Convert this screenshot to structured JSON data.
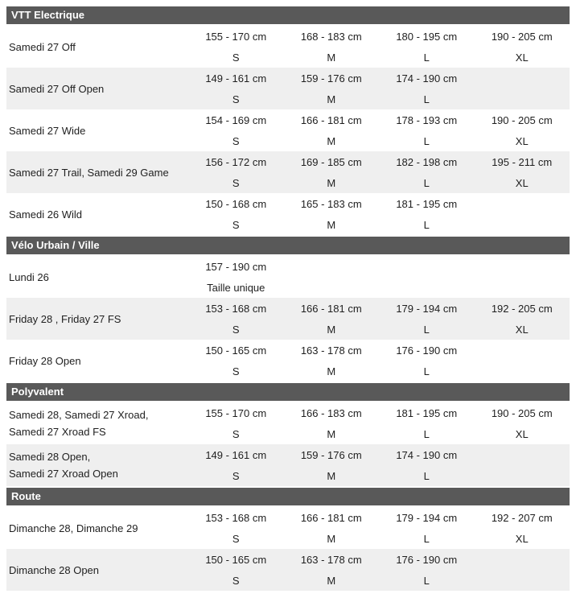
{
  "colors": {
    "header_bg": "#595959",
    "header_text": "#ffffff",
    "alt_row_bg": "#efefef",
    "text": "#1f1f1f"
  },
  "table": {
    "sections": [
      {
        "title": "VTT Electrique",
        "rows": [
          {
            "model": [
              "Samedi 27 Off"
            ],
            "sizes": [
              {
                "range": "155 - 170 cm",
                "label": "S"
              },
              {
                "range": "168 - 183 cm",
                "label": "M"
              },
              {
                "range": "180 - 195 cm",
                "label": "L"
              },
              {
                "range": "190 - 205 cm",
                "label": "XL"
              }
            ]
          },
          {
            "model": [
              "Samedi 27 Off Open"
            ],
            "sizes": [
              {
                "range": "149 - 161 cm",
                "label": "S"
              },
              {
                "range": "159 - 176 cm",
                "label": "M"
              },
              {
                "range": "174 - 190 cm",
                "label": "L"
              }
            ]
          },
          {
            "model": [
              "Samedi 27 Wide"
            ],
            "sizes": [
              {
                "range": "154 - 169 cm",
                "label": "S"
              },
              {
                "range": "166 - 181 cm",
                "label": "M"
              },
              {
                "range": "178 - 193 cm",
                "label": "L"
              },
              {
                "range": "190 - 205 cm",
                "label": "XL"
              }
            ]
          },
          {
            "model": [
              "Samedi 27 Trail, Samedi 29 Game"
            ],
            "sizes": [
              {
                "range": "156 - 172 cm",
                "label": "S"
              },
              {
                "range": "169 - 185 cm",
                "label": "M"
              },
              {
                "range": "182 - 198 cm",
                "label": "L"
              },
              {
                "range": "195 - 211 cm",
                "label": "XL"
              }
            ]
          },
          {
            "model": [
              "Samedi 26 Wild"
            ],
            "sizes": [
              {
                "range": "150 - 168 cm",
                "label": "S"
              },
              {
                "range": "165 - 183 cm",
                "label": "M"
              },
              {
                "range": "181 - 195 cm",
                "label": "L"
              }
            ]
          }
        ]
      },
      {
        "title": "Vélo Urbain / Ville",
        "rows": [
          {
            "model": [
              "Lundi 26"
            ],
            "sizes": [
              {
                "range": "157 - 190 cm",
                "label": "Taille unique"
              }
            ]
          },
          {
            "model": [
              "Friday 28 , Friday 27 FS"
            ],
            "sizes": [
              {
                "range": "153 - 168 cm",
                "label": "S"
              },
              {
                "range": "166 - 181 cm",
                "label": "M"
              },
              {
                "range": "179 - 194 cm",
                "label": "L"
              },
              {
                "range": "192 - 205 cm",
                "label": "XL"
              }
            ]
          },
          {
            "model": [
              "Friday 28 Open"
            ],
            "sizes": [
              {
                "range": "150 - 165 cm",
                "label": "S"
              },
              {
                "range": "163 - 178 cm",
                "label": "M"
              },
              {
                "range": "176 - 190 cm",
                "label": "L"
              }
            ]
          }
        ]
      },
      {
        "title": "Polyvalent",
        "rows": [
          {
            "model": [
              "Samedi 28, Samedi 27 Xroad,",
              "Samedi 27 Xroad FS"
            ],
            "sizes": [
              {
                "range": "155 - 170 cm",
                "label": "S"
              },
              {
                "range": "166 - 183 cm",
                "label": "M"
              },
              {
                "range": "181 - 195 cm",
                "label": "L"
              },
              {
                "range": "190 - 205 cm",
                "label": "XL"
              }
            ]
          },
          {
            "model": [
              "Samedi 28 Open,",
              "Samedi 27 Xroad Open"
            ],
            "sizes": [
              {
                "range": "149 - 161 cm",
                "label": "S"
              },
              {
                "range": "159 - 176 cm",
                "label": "M"
              },
              {
                "range": "174 - 190 cm",
                "label": "L"
              }
            ]
          }
        ]
      },
      {
        "title": "Route",
        "rows": [
          {
            "model": [
              "Dimanche 28, Dimanche 29"
            ],
            "sizes": [
              {
                "range": "153 - 168 cm",
                "label": "S"
              },
              {
                "range": "166 - 181 cm",
                "label": "M"
              },
              {
                "range": "179 - 194 cm",
                "label": "L"
              },
              {
                "range": "192 - 207 cm",
                "label": "XL"
              }
            ]
          },
          {
            "model": [
              "Dimanche 28 Open"
            ],
            "sizes": [
              {
                "range": "150 - 165 cm",
                "label": "S"
              },
              {
                "range": "163 - 178 cm",
                "label": "M"
              },
              {
                "range": "176 - 190 cm",
                "label": "L"
              }
            ]
          }
        ]
      }
    ]
  }
}
